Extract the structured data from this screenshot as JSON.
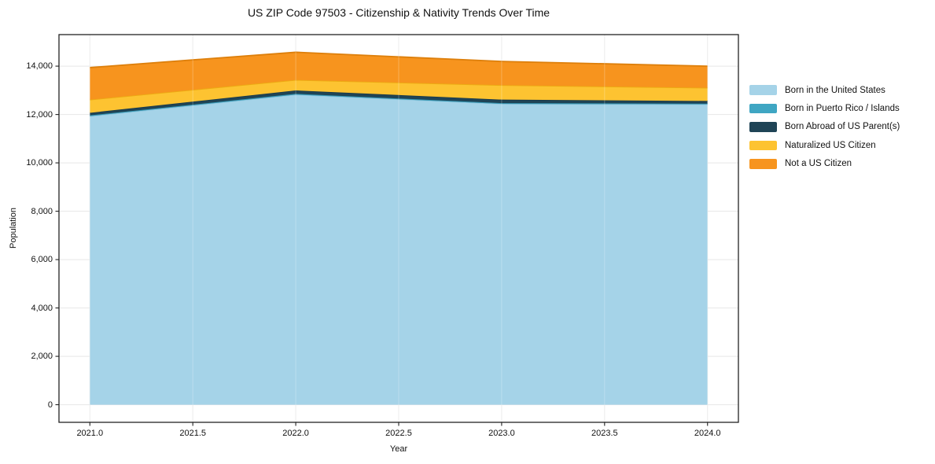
{
  "chart_data": {
    "type": "area",
    "stacked": true,
    "title": "US ZIP Code 97503 - Citizenship & Nativity Trends Over Time",
    "xlabel": "Year",
    "ylabel": "Population",
    "x": [
      2021,
      2022,
      2023,
      2024
    ],
    "series": [
      {
        "name": "Born in the United States",
        "color": "#a5d3e8",
        "edge": "#93c8e0",
        "values": [
          11930,
          12820,
          12440,
          12420
        ]
      },
      {
        "name": "Born in Puerto Rico / Islands",
        "color": "#3fa6c3",
        "edge": "#3595b1",
        "values": [
          35,
          35,
          30,
          30
        ]
      },
      {
        "name": "Born Abroad of US Parent(s)",
        "color": "#1f4456",
        "edge": "#1a3a4a",
        "values": [
          105,
          140,
          145,
          110
        ]
      },
      {
        "name": "Naturalized US Citizen",
        "color": "#fdc331",
        "edge": "#ecab12",
        "values": [
          545,
          435,
          600,
          545
        ]
      },
      {
        "name": "Not a US Citizen",
        "color": "#f7941e",
        "edge": "#dd7f0b",
        "values": [
          1325,
          1145,
          980,
          895
        ]
      }
    ],
    "totals_by_year": [
      13940,
      14575,
      14195,
      14000
    ],
    "xlim": [
      2020.85,
      2024.15
    ],
    "ylim": [
      -729,
      15304
    ],
    "x_ticks": {
      "values": [
        2021.0,
        2021.5,
        2022.0,
        2022.5,
        2023.0,
        2023.5,
        2024.0
      ],
      "labels": [
        "2021.0",
        "2021.5",
        "2022.0",
        "2022.5",
        "2023.0",
        "2023.5",
        "2024.0"
      ]
    },
    "y_ticks": {
      "values": [
        0,
        2000,
        4000,
        6000,
        8000,
        10000,
        12000,
        14000
      ],
      "labels": [
        "0",
        "2,000",
        "4,000",
        "6,000",
        "8,000",
        "10,000",
        "12,000",
        "14,000"
      ]
    },
    "grid": true,
    "grid_color": "#e7e7e7",
    "spine_color": "#222222",
    "legend_position": "right-outside"
  }
}
